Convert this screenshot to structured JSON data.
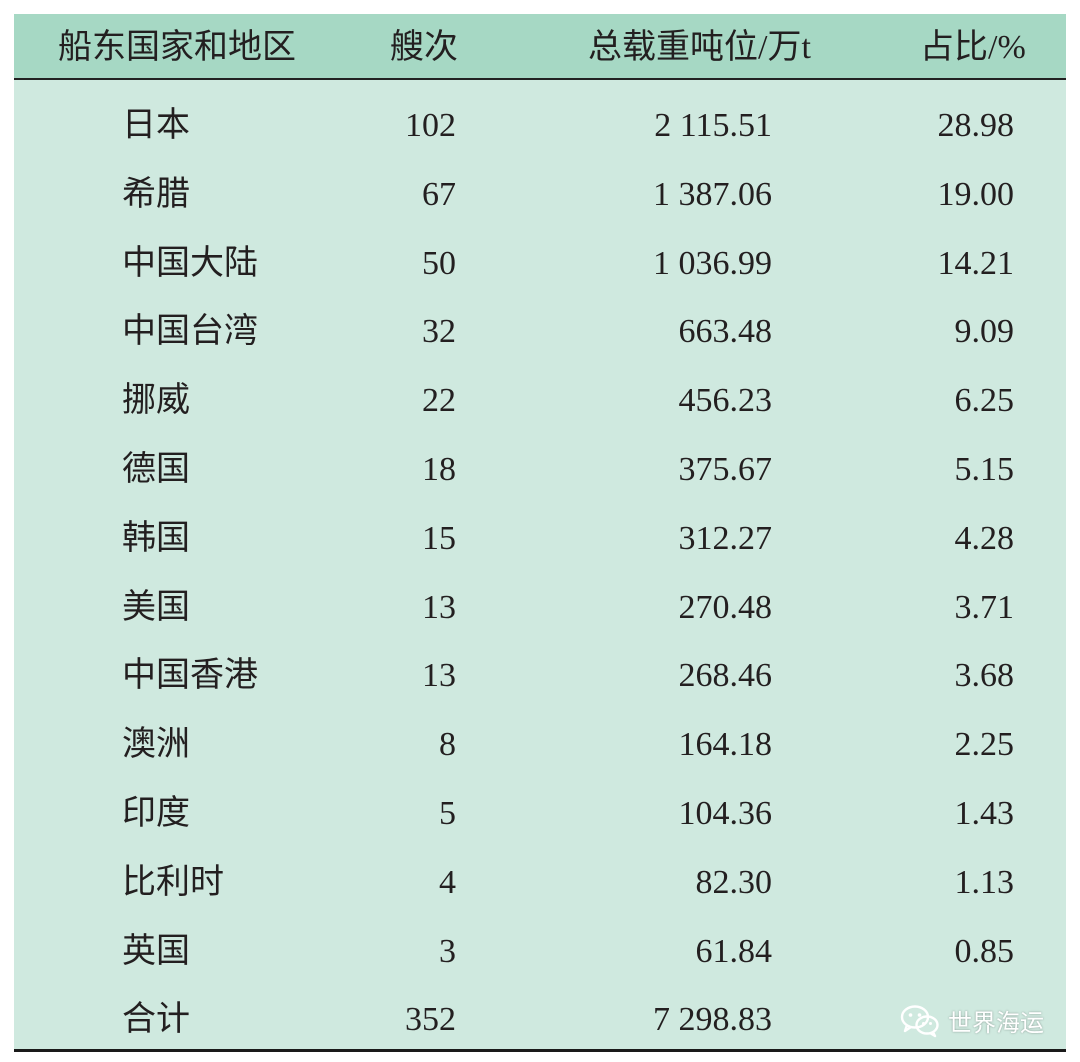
{
  "table": {
    "headers": {
      "region": "船东国家和地区",
      "count": "艘次",
      "dwt": "总载重吨位/万t",
      "share": "占比/%"
    },
    "rows": [
      {
        "region": "日本",
        "count": "102",
        "dwt": "2 115.51",
        "share": "28.98"
      },
      {
        "region": "希腊",
        "count": "67",
        "dwt": "1 387.06",
        "share": "19.00"
      },
      {
        "region": "中国大陆",
        "count": "50",
        "dwt": "1 036.99",
        "share": "14.21"
      },
      {
        "region": "中国台湾",
        "count": "32",
        "dwt": "663.48",
        "share": "9.09"
      },
      {
        "region": "挪威",
        "count": "22",
        "dwt": "456.23",
        "share": "6.25"
      },
      {
        "region": "德国",
        "count": "18",
        "dwt": "375.67",
        "share": "5.15"
      },
      {
        "region": "韩国",
        "count": "15",
        "dwt": "312.27",
        "share": "4.28"
      },
      {
        "region": "美国",
        "count": "13",
        "dwt": "270.48",
        "share": "3.71"
      },
      {
        "region": "中国香港",
        "count": "13",
        "dwt": "268.46",
        "share": "3.68"
      },
      {
        "region": "澳洲",
        "count": "8",
        "dwt": "164.18",
        "share": "2.25"
      },
      {
        "region": "印度",
        "count": "5",
        "dwt": "104.36",
        "share": "1.43"
      },
      {
        "region": "比利时",
        "count": "4",
        "dwt": "82.30",
        "share": "1.13"
      },
      {
        "region": "英国",
        "count": "3",
        "dwt": "61.84",
        "share": "0.85"
      },
      {
        "region": "合计",
        "count": "352",
        "dwt": "7 298.83",
        "share": ""
      }
    ]
  },
  "watermark": {
    "text": "世界海运",
    "icon": "wechat-icon"
  },
  "colors": {
    "header_bg": "#a6d8c4",
    "body_bg": "#cfe9df",
    "text": "#231f20"
  }
}
